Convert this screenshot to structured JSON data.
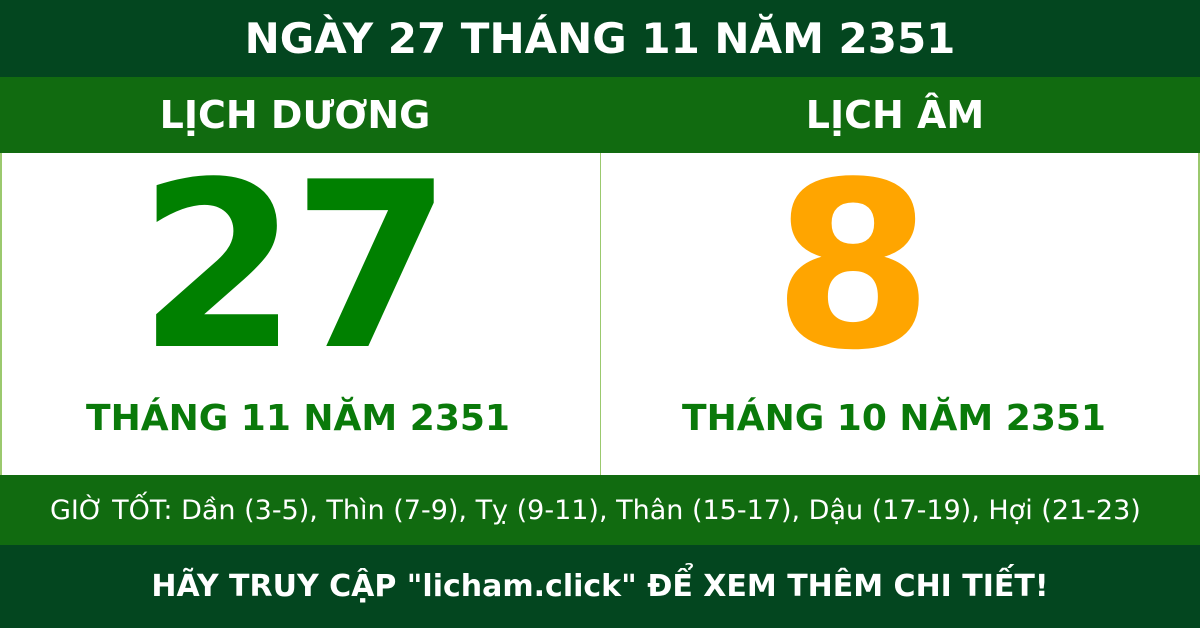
{
  "header": {
    "title": "NGÀY 27 THÁNG 11 NĂM 2351"
  },
  "solar": {
    "label": "LỊCH DƯƠNG",
    "day": "27",
    "month_year": "THÁNG 11 NĂM 2351",
    "color": "#008000"
  },
  "lunar": {
    "label": "LỊCH ÂM",
    "day": "8",
    "month_year": "THÁNG 10 NĂM 2351",
    "color": "#ffa500"
  },
  "good_hours": "GIỜ TỐT: Dần (3-5), Thìn (7-9), Tỵ (9-11), Thân (15-17), Dậu (17-19), Hợi (21-23)",
  "footer": {
    "text": "HÃY TRUY CẬP \"licham.click\" ĐỂ XEM THÊM CHI TIẾT!"
  }
}
